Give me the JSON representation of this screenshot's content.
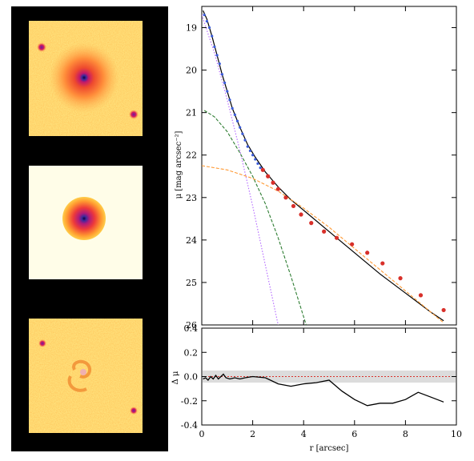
{
  "figure": {
    "panels_left": [
      {
        "name": "observed-image"
      },
      {
        "name": "model-image"
      },
      {
        "name": "residual-image"
      }
    ]
  },
  "chart_data": [
    {
      "type": "line",
      "panel": "surface-brightness-profile",
      "xlabel": "",
      "ylabel": "μ [mag arcsec⁻²]",
      "xlim": [
        0,
        10
      ],
      "ylim": [
        26,
        18.5
      ],
      "y_inverted": true,
      "yticks": [
        19,
        20,
        21,
        22,
        23,
        24,
        25,
        26
      ],
      "xticks": [
        0,
        2,
        4,
        6,
        8,
        10
      ],
      "series": [
        {
          "style": "solid",
          "color": "#000000",
          "x": [
            0.05,
            0.2,
            0.4,
            0.6,
            0.8,
            1.0,
            1.2,
            1.5,
            1.8,
            2.1,
            2.5,
            3.0,
            3.5,
            4.0,
            5.0,
            6.0,
            7.0,
            8.0,
            9.0,
            9.5
          ],
          "y": [
            18.6,
            18.8,
            19.2,
            19.65,
            20.1,
            20.5,
            20.9,
            21.35,
            21.75,
            22.05,
            22.4,
            22.75,
            23.05,
            23.3,
            23.8,
            24.3,
            24.8,
            25.25,
            25.7,
            25.9
          ]
        },
        {
          "style": "dotted",
          "color": "#b266ff",
          "x": [
            0.0,
            0.5,
            1.0,
            1.5,
            2.0,
            2.5,
            3.0
          ],
          "y": [
            18.7,
            19.6,
            20.7,
            21.9,
            23.2,
            24.6,
            26.0
          ]
        },
        {
          "style": "dashed",
          "color": "#2e7d32",
          "x": [
            0.1,
            0.5,
            1.0,
            1.5,
            2.0,
            2.5,
            3.0,
            3.5,
            4.1
          ],
          "y": [
            20.95,
            21.1,
            21.45,
            21.95,
            22.5,
            23.15,
            23.95,
            24.85,
            26.0
          ]
        },
        {
          "style": "dashed",
          "color": "#ff9933",
          "x": [
            0.0,
            1.0,
            2.0,
            3.0,
            4.0,
            5.0,
            6.0,
            7.0,
            8.0,
            9.0,
            9.5
          ],
          "y": [
            22.25,
            22.35,
            22.55,
            22.85,
            23.25,
            23.7,
            24.2,
            24.7,
            25.2,
            25.7,
            25.95
          ]
        },
        {
          "style": "points",
          "color": "#3a5bd9",
          "x": [
            0.1,
            0.2,
            0.3,
            0.4,
            0.5,
            0.6,
            0.7,
            0.8,
            0.9,
            1.0,
            1.1,
            1.2,
            1.3,
            1.4,
            1.5,
            1.6,
            1.7,
            1.8,
            1.9,
            2.0,
            2.1,
            2.2,
            2.3
          ],
          "y": [
            18.7,
            18.85,
            19.0,
            19.2,
            19.45,
            19.65,
            19.85,
            20.1,
            20.3,
            20.5,
            20.7,
            20.9,
            21.05,
            21.2,
            21.35,
            21.5,
            21.65,
            21.8,
            21.9,
            22.0,
            22.1,
            22.2,
            22.3
          ]
        },
        {
          "style": "points",
          "color": "#d8302a",
          "x": [
            2.4,
            2.6,
            2.8,
            3.0,
            3.3,
            3.6,
            3.9,
            4.3,
            4.8,
            5.3,
            5.9,
            6.5,
            7.1,
            7.8,
            8.6,
            9.5
          ],
          "y": [
            22.35,
            22.5,
            22.65,
            22.8,
            23.0,
            23.2,
            23.4,
            23.6,
            23.8,
            23.95,
            24.1,
            24.3,
            24.55,
            24.9,
            25.3,
            25.65
          ]
        }
      ]
    },
    {
      "type": "line",
      "panel": "residual-profile",
      "xlabel": "r [arcsec]",
      "ylabel": "Δ μ",
      "xlim": [
        0,
        10
      ],
      "ylim": [
        -0.4,
        0.4
      ],
      "yticks": [
        -0.4,
        -0.2,
        0.0,
        0.2,
        0.4
      ],
      "ytick_labels": [
        "-0.4",
        "-0.2",
        "0.0",
        "0.2",
        "0.4"
      ],
      "xticks": [
        0,
        2,
        4,
        6,
        8,
        10
      ],
      "xtick_labels": [
        "0",
        "2",
        "4",
        "6",
        "8",
        "10"
      ],
      "band": [
        -0.05,
        0.05
      ],
      "zero_line_color": "#d8302a",
      "series": [
        {
          "style": "solid",
          "color": "#000000",
          "x": [
            0.05,
            0.15,
            0.25,
            0.35,
            0.45,
            0.55,
            0.65,
            0.75,
            0.85,
            0.95,
            1.1,
            1.3,
            1.5,
            1.7,
            2.0,
            2.5,
            3.0,
            3.5,
            4.0,
            4.5,
            5.0,
            5.5,
            6.0,
            6.5,
            7.0,
            7.5,
            8.0,
            8.5,
            9.0,
            9.5
          ],
          "y": [
            -0.02,
            -0.01,
            -0.03,
            0.0,
            -0.02,
            0.01,
            -0.02,
            0.0,
            0.02,
            -0.01,
            -0.02,
            -0.01,
            -0.02,
            -0.01,
            0.0,
            -0.01,
            -0.06,
            -0.08,
            -0.06,
            -0.05,
            -0.03,
            -0.12,
            -0.19,
            -0.24,
            -0.22,
            -0.22,
            -0.19,
            -0.13,
            -0.17,
            -0.21
          ]
        }
      ]
    }
  ]
}
